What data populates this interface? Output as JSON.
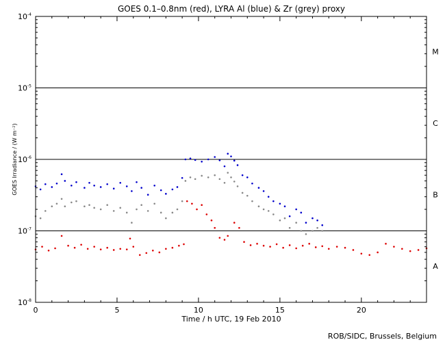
{
  "chart_data": {
    "type": "scatter",
    "title": "GOES 0.1–0.8nm (red), LYRA Al (blue) & Zr (grey) proxy",
    "xlabel": "Time / h UTC, 19 Feb 2010",
    "ylabel": "GOES Irradiance / (W m⁻²)",
    "credit": "ROB/SIDC, Brussels, Belgium",
    "xlim": [
      0,
      24
    ],
    "ylim": [
      1e-08,
      0.0001
    ],
    "yscale": "log",
    "x_ticks": [
      0,
      5,
      10,
      15,
      20
    ],
    "x_tick_labels": [
      "0",
      "5",
      "10",
      "15",
      "20"
    ],
    "y_ticks": [
      1e-08,
      1e-07,
      1e-06,
      1e-05,
      0.0001
    ],
    "y_tick_labels": [
      {
        "base": "10",
        "exp": "-8"
      },
      {
        "base": "10",
        "exp": "-7"
      },
      {
        "base": "10",
        "exp": "-6"
      },
      {
        "base": "10",
        "exp": "-5"
      },
      {
        "base": "10",
        "exp": "-4"
      }
    ],
    "flare_class_levels": [
      1e-07,
      1e-06,
      1e-05
    ],
    "flare_class_labels": [
      {
        "label": "A",
        "value": 3.2e-08
      },
      {
        "label": "B",
        "value": 3.2e-07
      },
      {
        "label": "C",
        "value": 3.2e-06
      },
      {
        "label": "M",
        "value": 3.2e-05
      }
    ],
    "series": [
      {
        "color": "#0000cc",
        "x": [
          0.0,
          0.3,
          0.6,
          1.0,
          1.3,
          1.6,
          1.8,
          2.2,
          2.5,
          3.0,
          3.3,
          3.6,
          4.0,
          4.4,
          4.8,
          5.2,
          5.6,
          5.9,
          6.2,
          6.5,
          6.9,
          7.3,
          7.7,
          8.0,
          8.4,
          8.7,
          9.0,
          9.2,
          9.5,
          9.8,
          10.2,
          10.6,
          11.0,
          11.3,
          11.6,
          11.8,
          12.0,
          12.2,
          12.4,
          12.7,
          13.0,
          13.3,
          13.7,
          14.0,
          14.3,
          14.6,
          15.0,
          15.3,
          15.6,
          16.0,
          16.3,
          16.6,
          17.0,
          17.3,
          17.6
        ],
        "y": [
          4.2e-07,
          3.8e-07,
          4.5e-07,
          4.1e-07,
          4.6e-07,
          6.2e-07,
          5e-07,
          4.3e-07,
          4.8e-07,
          4e-07,
          4.7e-07,
          4.3e-07,
          4.1e-07,
          4.5e-07,
          3.9e-07,
          4.7e-07,
          4.2e-07,
          3.6e-07,
          4.8e-07,
          4e-07,
          3.2e-07,
          4.3e-07,
          3.7e-07,
          3.3e-07,
          3.8e-07,
          4.1e-07,
          5.5e-07,
          1e-06,
          1.03e-06,
          9.8e-07,
          9.3e-07,
          1e-06,
          1.08e-06,
          9.7e-07,
          8e-07,
          1.2e-06,
          1.1e-06,
          9.6e-07,
          8.3e-07,
          6e-07,
          5.6e-07,
          4.6e-07,
          4e-07,
          3.6e-07,
          3e-07,
          2.6e-07,
          2.4e-07,
          2.2e-07,
          1.6e-07,
          2e-07,
          1.8e-07,
          1.3e-07,
          1.5e-07,
          1.4e-07,
          1.2e-07
        ]
      },
      {
        "color": "#888888",
        "x": [
          0.0,
          0.3,
          0.6,
          1.0,
          1.3,
          1.6,
          1.8,
          2.2,
          2.5,
          3.0,
          3.3,
          3.6,
          4.0,
          4.4,
          4.8,
          5.2,
          5.6,
          5.9,
          6.2,
          6.5,
          6.9,
          7.3,
          7.7,
          8.0,
          8.4,
          8.7,
          9.0,
          9.2,
          9.5,
          9.8,
          10.2,
          10.6,
          11.0,
          11.3,
          11.6,
          11.8,
          12.0,
          12.2,
          12.4,
          12.7,
          13.0,
          13.3,
          13.7,
          14.0,
          14.3,
          14.6,
          15.0,
          15.3,
          15.6,
          16.0,
          16.3,
          16.6,
          17.0,
          17.3,
          17.6
        ],
        "y": [
          1.6e-07,
          1.5e-07,
          1.9e-07,
          2.2e-07,
          2.4e-07,
          2.8e-07,
          2.2e-07,
          2.5e-07,
          2.6e-07,
          2.2e-07,
          2.3e-07,
          2.1e-07,
          2e-07,
          2.3e-07,
          1.9e-07,
          2.1e-07,
          1.8e-07,
          1.3e-07,
          2e-07,
          2.3e-07,
          1.9e-07,
          2.4e-07,
          1.8e-07,
          1.5e-07,
          1.8e-07,
          2e-07,
          2.6e-07,
          5e-07,
          5.6e-07,
          5.3e-07,
          5.9e-07,
          5.6e-07,
          6e-07,
          5.3e-07,
          4.7e-07,
          6.5e-07,
          5.6e-07,
          4.9e-07,
          4.2e-07,
          3.4e-07,
          3.1e-07,
          2.6e-07,
          2.2e-07,
          2e-07,
          1.9e-07,
          1.7e-07,
          1.4e-07,
          1.5e-07,
          1.1e-07,
          1.3e-07,
          1e-07,
          9e-08,
          1e-07,
          1.1e-07,
          1e-07
        ]
      },
      {
        "color": "#dd0000",
        "x": [
          0.0,
          0.4,
          0.8,
          1.2,
          1.6,
          2.0,
          2.4,
          2.8,
          3.2,
          3.6,
          4.0,
          4.4,
          4.8,
          5.2,
          5.6,
          5.8,
          6.0,
          6.4,
          6.8,
          7.2,
          7.6,
          8.0,
          8.4,
          8.8,
          9.1,
          9.3,
          9.6,
          9.9,
          10.2,
          10.5,
          10.8,
          11.0,
          11.3,
          11.6,
          11.8,
          12.2,
          12.5,
          12.8,
          13.2,
          13.6,
          14.0,
          14.4,
          14.8,
          15.2,
          15.6,
          16.0,
          16.4,
          16.8,
          17.2,
          17.6,
          18.0,
          18.5,
          19.0,
          19.5,
          20.0,
          20.5,
          21.0,
          21.5,
          22.0,
          22.5,
          23.0,
          23.5,
          24.0
        ],
        "y": [
          5.5e-08,
          6e-08,
          5.3e-08,
          5.7e-08,
          8.5e-08,
          6.2e-08,
          5.8e-08,
          6.4e-08,
          5.6e-08,
          6e-08,
          5.5e-08,
          5.8e-08,
          5.4e-08,
          5.6e-08,
          5.5e-08,
          7.8e-08,
          6e-08,
          4.6e-08,
          4.9e-08,
          5.3e-08,
          5e-08,
          5.6e-08,
          5.8e-08,
          6.2e-08,
          6.5e-08,
          2.6e-07,
          2.4e-07,
          2e-07,
          2.3e-07,
          1.7e-07,
          1.4e-07,
          1.1e-07,
          8e-08,
          7.5e-08,
          8.5e-08,
          1.3e-07,
          1.1e-07,
          7e-08,
          6.3e-08,
          6.6e-08,
          6.2e-08,
          6e-08,
          6.5e-08,
          5.8e-08,
          6.3e-08,
          5.7e-08,
          6.2e-08,
          6.6e-08,
          5.9e-08,
          6.1e-08,
          5.6e-08,
          6e-08,
          5.8e-08,
          5.4e-08,
          4.8e-08,
          4.6e-08,
          5e-08,
          6.6e-08,
          6e-08,
          5.6e-08,
          5.2e-08,
          5.4e-08,
          5.7e-08
        ]
      }
    ]
  }
}
